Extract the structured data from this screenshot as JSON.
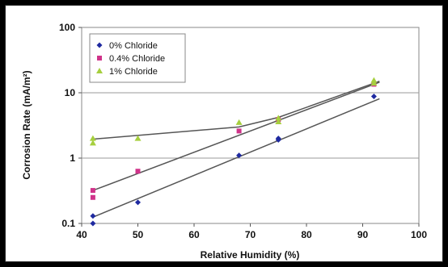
{
  "chart_data": {
    "type": "scatter",
    "xlabel": "Relative Humidity (%)",
    "ylabel": "Corrosion Rate (mA/m²)",
    "xlim": [
      40,
      100
    ],
    "ylim": [
      0.1,
      100
    ],
    "y_scale": "log",
    "x_ticks": [
      "40",
      "50",
      "60",
      "70",
      "80",
      "90",
      "100"
    ],
    "y_ticks": [
      "0.1",
      "1",
      "10",
      "100"
    ],
    "legend_position": "top-left",
    "grid": "horizontal",
    "series": [
      {
        "name": "0% Chloride",
        "marker": "diamond",
        "color": "#1f2aa0",
        "points": [
          [
            42,
            0.1
          ],
          [
            42,
            0.13
          ],
          [
            50,
            0.21
          ],
          [
            68,
            1.1
          ],
          [
            75,
            1.9
          ],
          [
            75,
            2.0
          ],
          [
            92,
            8.8
          ]
        ],
        "trend": [
          [
            42,
            0.125
          ],
          [
            93,
            8.1
          ]
        ]
      },
      {
        "name": "0.4% Chloride",
        "marker": "square",
        "color": "#d0338a",
        "points": [
          [
            42,
            0.25
          ],
          [
            42,
            0.32
          ],
          [
            50,
            0.63
          ],
          [
            68,
            2.6
          ],
          [
            75,
            3.9
          ],
          [
            92,
            13.5
          ]
        ],
        "trend": [
          [
            42,
            0.32
          ],
          [
            93,
            14.5
          ]
        ]
      },
      {
        "name": "1% Chloride",
        "marker": "triangle",
        "color": "#a6cf3e",
        "points": [
          [
            42,
            1.7
          ],
          [
            42,
            2.0
          ],
          [
            50,
            2.0
          ],
          [
            68,
            3.5
          ],
          [
            75,
            3.6
          ],
          [
            75,
            4.1
          ],
          [
            92,
            15.5
          ],
          [
            92,
            14.0
          ]
        ],
        "trend": [
          [
            42,
            1.95
          ],
          [
            68,
            3.0
          ],
          [
            75,
            4.2
          ],
          [
            93,
            15.0
          ]
        ]
      }
    ]
  }
}
